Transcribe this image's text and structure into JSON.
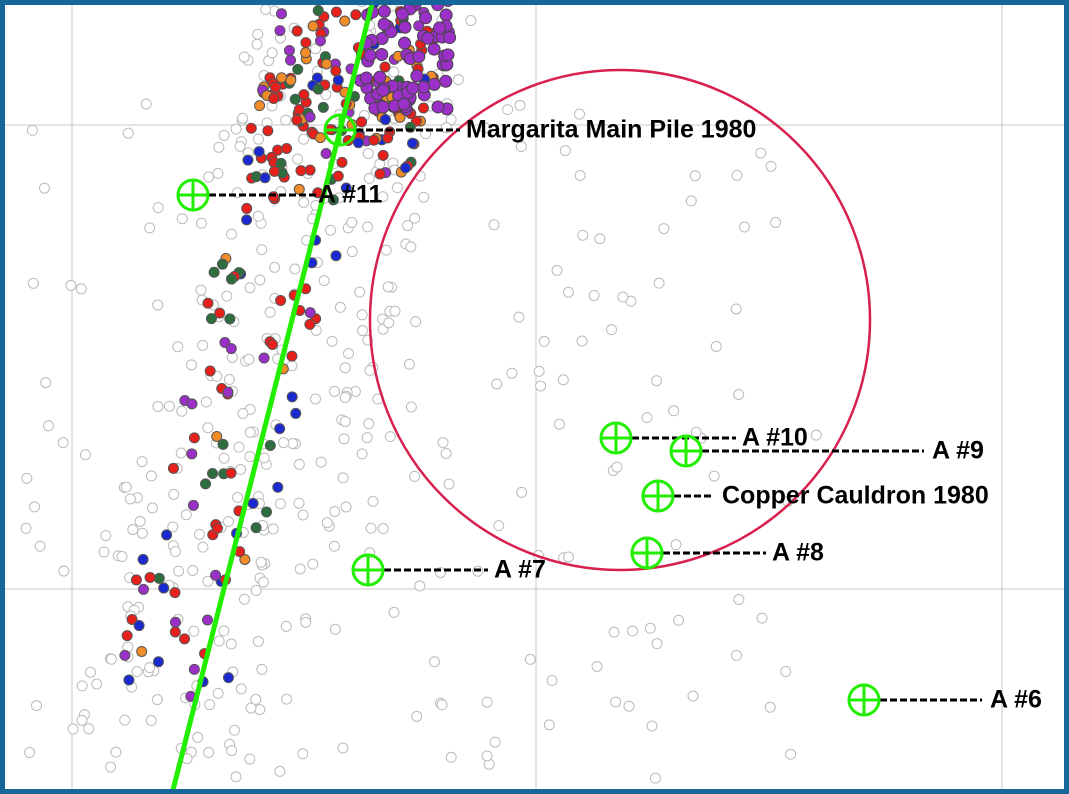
{
  "labels": [
    {
      "text": "Margarita Main Pile 1980"
    },
    {
      "text": "A #11"
    },
    {
      "text": "A #10"
    },
    {
      "text": "A #9"
    },
    {
      "text": "Copper Cauldron 1980"
    },
    {
      "text": "A #8"
    },
    {
      "text": "A #7"
    },
    {
      "text": "A #6"
    }
  ]
}
